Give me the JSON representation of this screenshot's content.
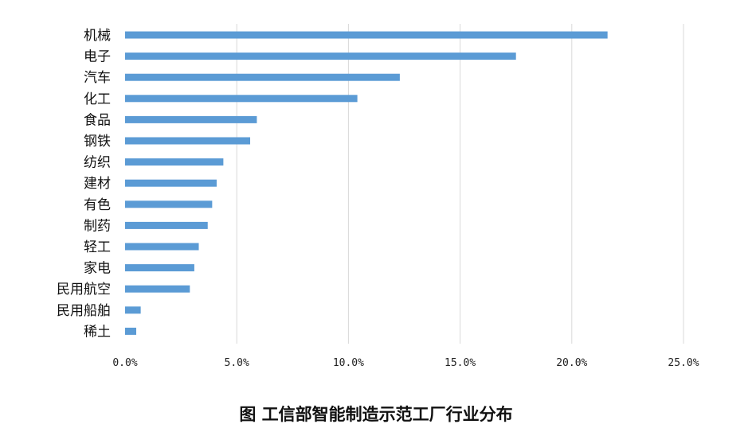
{
  "chart_data": {
    "type": "bar",
    "orientation": "horizontal",
    "categories": [
      "机械",
      "电子",
      "汽车",
      "化工",
      "食品",
      "钢铁",
      "纺织",
      "建材",
      "有色",
      "制药",
      "轻工",
      "家电",
      "民用航空",
      "民用船舶",
      "稀土"
    ],
    "values": [
      21.6,
      17.5,
      12.3,
      10.4,
      5.9,
      5.6,
      4.4,
      4.1,
      3.9,
      3.7,
      3.3,
      3.1,
      2.9,
      0.7,
      0.5
    ],
    "unit": "%",
    "xlim": [
      0,
      25
    ],
    "x_ticks": [
      "0.0%",
      "5.0%",
      "10.0%",
      "15.0%",
      "20.0%",
      "25.0%"
    ],
    "bar_color": "#5b9bd5",
    "grid": true,
    "grid_direction": "vertical",
    "title": "",
    "xlabel": "",
    "ylabel": "",
    "caption": "图    工信部智能制造示范工厂行业分布"
  }
}
